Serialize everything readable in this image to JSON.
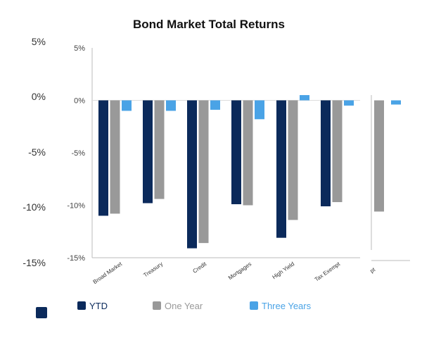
{
  "chart_data": {
    "type": "bar",
    "title": "Bond Market Total Returns",
    "categories": [
      "Broad Market",
      "Treasury",
      "Credit",
      "Mortgages",
      "High Yield",
      "Tax Exempt"
    ],
    "series": [
      {
        "name": "YTD",
        "color": "#0b2a5b",
        "values": [
          -11.0,
          -9.8,
          -14.1,
          -9.9,
          -13.1,
          -10.1
        ]
      },
      {
        "name": "One Year",
        "color": "#999999",
        "values": [
          -10.8,
          -9.4,
          -13.6,
          -10.0,
          -11.4,
          -9.7
        ]
      },
      {
        "name": "Three Years",
        "color": "#4aa3e6",
        "values": [
          -1.0,
          -1.0,
          -0.9,
          -1.8,
          0.5,
          -0.5
        ]
      }
    ],
    "extra_partial_category": {
      "label": "pt",
      "one_year": -10.6,
      "three_years": -0.4
    },
    "ylim": [
      -15,
      5
    ],
    "outer_y_ticks": [
      "5%",
      "0%",
      "-5%",
      "-10%",
      "-15%"
    ],
    "inner_y_ticks": [
      "5%",
      "0%",
      "-5%",
      "-10%",
      "-15%"
    ],
    "legend_position": "bottom"
  }
}
